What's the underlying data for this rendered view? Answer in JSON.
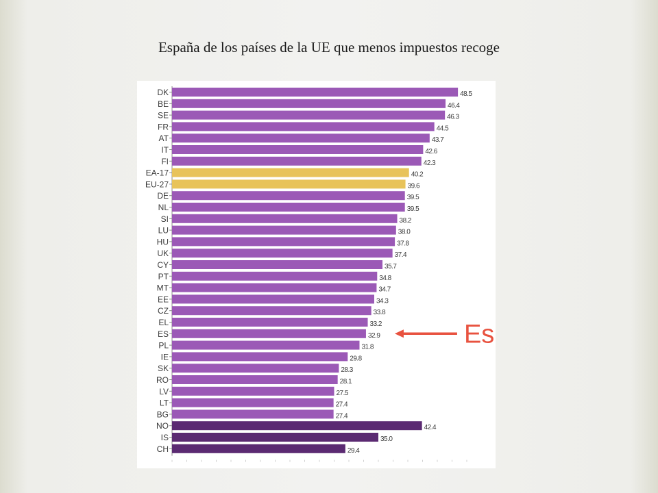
{
  "slide": {
    "title": "España de los países de la UE que menos impuestos recoge"
  },
  "chart_data": {
    "type": "bar",
    "orientation": "horizontal",
    "title": "",
    "xlabel": "",
    "ylabel": "",
    "xlim": [
      0,
      50
    ],
    "grid": false,
    "legend": "none",
    "categories": [
      "DK",
      "BE",
      "SE",
      "FR",
      "AT",
      "IT",
      "FI",
      "EA-17",
      "EU-27",
      "DE",
      "NL",
      "SI",
      "LU",
      "HU",
      "UK",
      "CY",
      "PT",
      "MT",
      "EE",
      "CZ",
      "EL",
      "ES",
      "PL",
      "IE",
      "SK",
      "RO",
      "LV",
      "LT",
      "BG",
      "NO",
      "IS",
      "CH"
    ],
    "values": [
      48.5,
      46.4,
      46.3,
      44.5,
      43.7,
      42.6,
      42.3,
      40.2,
      39.6,
      39.5,
      39.5,
      38.2,
      38.0,
      37.8,
      37.4,
      35.7,
      34.8,
      34.7,
      34.3,
      33.8,
      33.2,
      32.9,
      31.8,
      29.8,
      28.3,
      28.1,
      27.5,
      27.4,
      27.4,
      42.4,
      35.0,
      29.4
    ],
    "value_labels": [
      "48.5",
      "46.4",
      "46.3",
      "44.5",
      "43.7",
      "42.6",
      "42.3",
      "40.2",
      "39.6",
      "39.5",
      "39.5",
      "38.2",
      "38.0",
      "37.8",
      "37.4",
      "35.7",
      "34.8",
      "34.7",
      "34.3",
      "33.8",
      "33.2",
      "32.9",
      "31.8",
      "29.8",
      "28.3",
      "28.1",
      "27.5",
      "27.4",
      "27.4",
      "42.4",
      "35.0",
      "29.4"
    ],
    "groups": [
      "eu",
      "eu",
      "eu",
      "eu",
      "eu",
      "eu",
      "eu",
      "aggregate",
      "aggregate",
      "eu",
      "eu",
      "eu",
      "eu",
      "eu",
      "eu",
      "eu",
      "eu",
      "eu",
      "eu",
      "eu",
      "eu",
      "eu",
      "eu",
      "eu",
      "eu",
      "eu",
      "eu",
      "eu",
      "eu",
      "non-eu",
      "non-eu",
      "non-eu"
    ],
    "colors": {
      "eu": "#9b59b6",
      "aggregate": "#e8c35a",
      "non-eu": "#5b2a72"
    },
    "annotation": {
      "text": "España",
      "target": "ES",
      "color": "#e8523f"
    }
  }
}
